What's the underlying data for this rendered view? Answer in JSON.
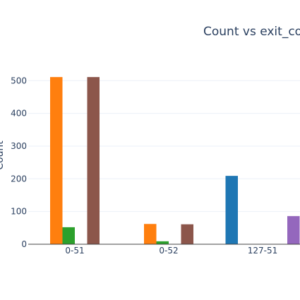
{
  "chart_data": {
    "type": "bar",
    "title": "Count vs exit_co",
    "ylabel": "Count",
    "xlabel": "",
    "categories": [
      "0-51",
      "0-52",
      "127-51"
    ],
    "ylim": [
      0,
      520
    ],
    "yticks": [
      0,
      100,
      200,
      300,
      400,
      500
    ],
    "grid": true,
    "legend": "none",
    "series": [
      {
        "color": "#1f77b4",
        "values": [
          0,
          0,
          209
        ]
      },
      {
        "color": "#ff7f0e",
        "values": [
          511,
          62,
          0
        ]
      },
      {
        "color": "#2ca02c",
        "values": [
          52,
          9,
          0
        ]
      },
      {
        "color": "#d62728",
        "values": [
          0,
          0,
          0
        ]
      },
      {
        "color": "#8c564b",
        "values": [
          511,
          61,
          0
        ]
      },
      {
        "color": "#9467bd",
        "values": [
          0,
          0,
          86
        ]
      }
    ]
  }
}
